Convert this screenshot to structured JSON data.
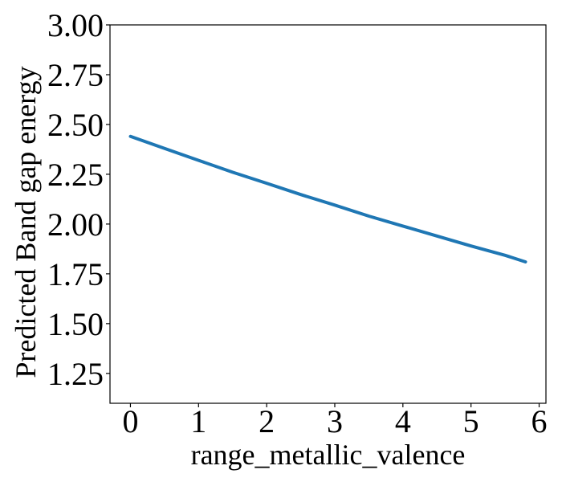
{
  "chart_data": {
    "type": "line",
    "title": "",
    "xlabel": "range_metallic_valence",
    "ylabel": "Predicted Band gap energy",
    "xlim": [
      -0.3,
      6.1
    ],
    "ylim": [
      1.1,
      3.0
    ],
    "xticks": [
      0,
      1,
      2,
      3,
      4,
      5,
      6
    ],
    "xtick_labels": [
      "0",
      "1",
      "2",
      "3",
      "4",
      "5",
      "6"
    ],
    "yticks": [
      1.25,
      1.5,
      1.75,
      2.0,
      2.25,
      2.5,
      2.75,
      3.0
    ],
    "ytick_labels": [
      "1.25",
      "1.50",
      "1.75",
      "2.00",
      "2.25",
      "2.50",
      "2.75",
      "3.00"
    ],
    "grid": false,
    "series": [
      {
        "color": "#1f77b4",
        "x": [
          0,
          0.5,
          1,
          1.5,
          2,
          2.5,
          3,
          3.5,
          4,
          4.5,
          5,
          5.5,
          5.8
        ],
        "y": [
          2.44,
          2.38,
          2.32,
          2.26,
          2.205,
          2.148,
          2.095,
          2.04,
          1.99,
          1.94,
          1.89,
          1.843,
          1.81
        ]
      }
    ]
  }
}
